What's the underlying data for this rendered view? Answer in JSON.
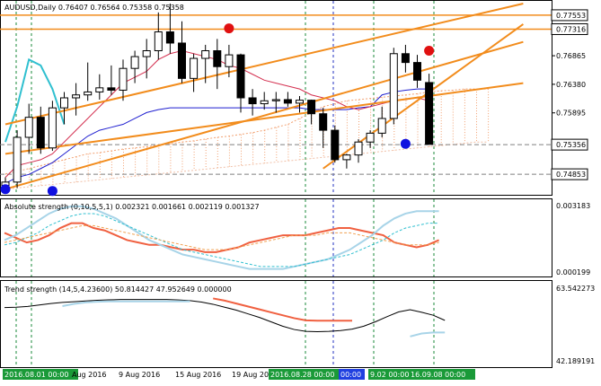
{
  "window": {
    "symbol_line": "AUDUSD,Daily  0.76407 0.76564 0.75358 0.75358"
  },
  "colors": {
    "background": "#ffffff",
    "candle_up": "#ffffff",
    "candle_down": "#000000",
    "trend_line": "#f28c1c",
    "kumo": "#f2a070",
    "tenkan": "#d43050",
    "kijun": "#1f1fd0",
    "chikou": "#30c0d0",
    "signal_up": "#1010e0",
    "signal_down": "#e01010",
    "strength_red": "#f06040",
    "strength_blue": "#a8d4e8",
    "price_tag": "#ffffff",
    "time_tag": "#1a9a38",
    "time_tag_blue": "#2040e0"
  },
  "main_chart": {
    "price_labels": [
      "0.77553",
      "0.77316",
      "0.76865",
      "0.76380",
      "0.75895",
      "0.75356",
      "0.74853"
    ],
    "price_levels": [
      0.77553,
      0.77316,
      0.76865,
      0.7638,
      0.75895,
      0.75356,
      0.74853
    ],
    "highlighted_labels": [
      "0.77553",
      "0.77316",
      "0.75356",
      "0.74853"
    ],
    "ylim": [
      0.7455,
      0.7775
    ]
  },
  "chart_data": [
    {
      "type": "candlestick",
      "title": "AUDUSD,Daily",
      "ylim": [
        0.7455,
        0.7775
      ],
      "candles": [
        {
          "o": 0.7466,
          "h": 0.748,
          "l": 0.7455,
          "c": 0.7472
        },
        {
          "o": 0.7472,
          "h": 0.756,
          "l": 0.7462,
          "c": 0.7548
        },
        {
          "o": 0.7548,
          "h": 0.7605,
          "l": 0.752,
          "c": 0.7582
        },
        {
          "o": 0.7582,
          "h": 0.76,
          "l": 0.752,
          "c": 0.753
        },
        {
          "o": 0.753,
          "h": 0.761,
          "l": 0.7525,
          "c": 0.7598
        },
        {
          "o": 0.7598,
          "h": 0.7625,
          "l": 0.757,
          "c": 0.7615
        },
        {
          "o": 0.7615,
          "h": 0.764,
          "l": 0.7585,
          "c": 0.762
        },
        {
          "o": 0.762,
          "h": 0.7675,
          "l": 0.761,
          "c": 0.7625
        },
        {
          "o": 0.7625,
          "h": 0.7655,
          "l": 0.7612,
          "c": 0.7632
        },
        {
          "o": 0.7632,
          "h": 0.767,
          "l": 0.762,
          "c": 0.7628
        },
        {
          "o": 0.7628,
          "h": 0.768,
          "l": 0.761,
          "c": 0.7665
        },
        {
          "o": 0.7665,
          "h": 0.7695,
          "l": 0.764,
          "c": 0.7685
        },
        {
          "o": 0.7685,
          "h": 0.7715,
          "l": 0.7648,
          "c": 0.7695
        },
        {
          "o": 0.7695,
          "h": 0.776,
          "l": 0.768,
          "c": 0.7727
        },
        {
          "o": 0.7727,
          "h": 0.7775,
          "l": 0.769,
          "c": 0.7708
        },
        {
          "o": 0.7708,
          "h": 0.7745,
          "l": 0.764,
          "c": 0.7648
        },
        {
          "o": 0.7648,
          "h": 0.769,
          "l": 0.7625,
          "c": 0.7682
        },
        {
          "o": 0.7682,
          "h": 0.7705,
          "l": 0.764,
          "c": 0.7695
        },
        {
          "o": 0.7695,
          "h": 0.7715,
          "l": 0.763,
          "c": 0.7668
        },
        {
          "o": 0.7668,
          "h": 0.7705,
          "l": 0.765,
          "c": 0.7688
        },
        {
          "o": 0.7688,
          "h": 0.769,
          "l": 0.759,
          "c": 0.7615
        },
        {
          "o": 0.7615,
          "h": 0.763,
          "l": 0.7585,
          "c": 0.7605
        },
        {
          "o": 0.7605,
          "h": 0.7625,
          "l": 0.7595,
          "c": 0.761
        },
        {
          "o": 0.761,
          "h": 0.7625,
          "l": 0.759,
          "c": 0.7612
        },
        {
          "o": 0.7612,
          "h": 0.7625,
          "l": 0.76,
          "c": 0.7606
        },
        {
          "o": 0.7606,
          "h": 0.7618,
          "l": 0.759,
          "c": 0.7611
        },
        {
          "o": 0.7611,
          "h": 0.7612,
          "l": 0.757,
          "c": 0.7588
        },
        {
          "o": 0.7588,
          "h": 0.7598,
          "l": 0.753,
          "c": 0.756
        },
        {
          "o": 0.756,
          "h": 0.7568,
          "l": 0.7505,
          "c": 0.751
        },
        {
          "o": 0.751,
          "h": 0.752,
          "l": 0.7495,
          "c": 0.7518
        },
        {
          "o": 0.7518,
          "h": 0.7545,
          "l": 0.7505,
          "c": 0.754
        },
        {
          "o": 0.754,
          "h": 0.756,
          "l": 0.753,
          "c": 0.7555
        },
        {
          "o": 0.7555,
          "h": 0.76,
          "l": 0.7548,
          "c": 0.758
        },
        {
          "o": 0.758,
          "h": 0.77,
          "l": 0.757,
          "c": 0.769
        },
        {
          "o": 0.769,
          "h": 0.7705,
          "l": 0.7658,
          "c": 0.7675
        },
        {
          "o": 0.7675,
          "h": 0.7688,
          "l": 0.7632,
          "c": 0.7645
        },
        {
          "o": 0.7641,
          "h": 0.7656,
          "l": 0.7536,
          "c": 0.7536
        }
      ],
      "tenkan": [
        0.748,
        0.75,
        0.7505,
        0.751,
        0.752,
        0.754,
        0.756,
        0.758,
        0.76,
        0.762,
        0.764,
        0.765,
        0.766,
        0.768,
        0.769,
        0.7695,
        0.769,
        0.7685,
        0.768,
        0.767,
        0.7665,
        0.7655,
        0.7645,
        0.764,
        0.7635,
        0.763,
        0.762,
        0.7615,
        0.761,
        0.76,
        0.7595,
        0.76,
        0.7605,
        0.761,
        0.7612,
        0.7615,
        0.761
      ],
      "kijun": [
        0.747,
        0.748,
        0.7485,
        0.7495,
        0.7505,
        0.752,
        0.7535,
        0.755,
        0.756,
        0.7565,
        0.757,
        0.758,
        0.759,
        0.7595,
        0.7598,
        0.7598,
        0.7598,
        0.7598,
        0.7598,
        0.7598,
        0.7598,
        0.7598,
        0.7598,
        0.7598,
        0.7598,
        0.7598,
        0.7595,
        0.7595,
        0.7595,
        0.7595,
        0.7598,
        0.76,
        0.762,
        0.7625,
        0.7628,
        0.763,
        0.763
      ],
      "chikou": [
        0.754,
        0.76,
        0.768,
        0.767,
        0.763,
        0.757,
        null,
        null,
        null,
        null,
        null,
        null,
        null,
        null,
        null,
        null,
        null,
        null,
        null,
        null,
        null,
        null,
        null,
        null,
        null,
        null,
        null,
        null,
        null,
        null,
        null,
        null,
        null,
        null,
        null,
        null,
        null
      ],
      "kumo_top": [
        0.7486,
        0.749,
        0.7495,
        0.75,
        0.7505,
        0.751,
        0.7515,
        0.752,
        0.7522,
        0.7525,
        0.7528,
        0.753,
        0.7532,
        0.7535,
        0.7537,
        0.754,
        0.7542,
        0.7545,
        0.7548,
        0.755,
        0.7553,
        0.7556,
        0.756,
        0.7565,
        0.757,
        0.758,
        0.759,
        0.76,
        0.7605,
        0.761,
        0.7612,
        0.7614,
        0.7616,
        0.7618,
        0.762,
        0.7622,
        0.7625,
        0.7627,
        0.7628,
        0.763,
        0.763,
        0.763
      ],
      "kumo_bottom": [
        0.746,
        0.7462,
        0.7464,
        0.7466,
        0.7468,
        0.747,
        0.7472,
        0.7474,
        0.7476,
        0.7478,
        0.748,
        0.7482,
        0.7484,
        0.7486,
        0.7488,
        0.749,
        0.7492,
        0.7494,
        0.7496,
        0.7498,
        0.75,
        0.7502,
        0.7504,
        0.7506,
        0.7508,
        0.751,
        0.7512,
        0.7514,
        0.7516,
        0.7518,
        0.752,
        0.7522,
        0.7524,
        0.7526,
        0.7528,
        0.753,
        0.7532,
        0.7534,
        0.7536,
        0.7538,
        0.754,
        0.754
      ],
      "trendlines": [
        {
          "from": [
            0,
            0.746
          ],
          "to": [
            44,
            0.771
          ]
        },
        {
          "from": [
            0,
            0.757
          ],
          "to": [
            44,
            0.7775
          ]
        },
        {
          "from": [
            0,
            0.752
          ],
          "to": [
            44,
            0.764
          ]
        },
        {
          "from": [
            27,
            0.7495
          ],
          "to": [
            44,
            0.774
          ]
        }
      ],
      "horizontal_levels": [
        0.77553,
        0.77316,
        0.75356,
        0.74853
      ],
      "signals": [
        {
          "kind": "down",
          "index": 19,
          "price": 0.7733
        },
        {
          "kind": "down",
          "index": 36,
          "price": 0.7695
        },
        {
          "kind": "up",
          "index": 34,
          "price": 0.7537
        },
        {
          "kind": "up",
          "index": 0,
          "price": 0.746
        },
        {
          "kind": "up",
          "index": 4,
          "price": 0.7457
        }
      ]
    },
    {
      "type": "line",
      "title": "Absolute strength (0,10,5,5,1) 0.002321 0.001661 0.002119 0.001327",
      "ylim": [
        0.000199,
        0.003183
      ],
      "tick_labels": [
        "0.003183",
        "0.000199"
      ],
      "series": [
        {
          "values": [
            0.0019,
            0.0017,
            0.0015,
            0.0016,
            0.0018,
            0.0021,
            0.0023,
            0.0023,
            0.0021,
            0.002,
            0.0018,
            0.0016,
            0.0015,
            0.0014,
            0.0014,
            0.0013,
            0.0012,
            0.0012,
            0.0011,
            0.0011,
            0.0012,
            0.0013,
            0.0015,
            0.0016,
            0.0017,
            0.0018,
            0.0018,
            0.0018,
            0.0019,
            0.002,
            0.0021,
            0.0021,
            0.002,
            0.0019,
            0.0018,
            0.0015,
            0.0014,
            0.0013,
            0.0014,
            0.0016
          ]
        },
        {
          "values": [
            0.0016,
            0.0018,
            0.0021,
            0.0024,
            0.0027,
            0.0029,
            0.003,
            0.003,
            0.0029,
            0.0027,
            0.0025,
            0.0022,
            0.0019,
            0.0016,
            0.0014,
            0.0012,
            0.001,
            0.0009,
            0.0008,
            0.0007,
            0.0006,
            0.0005,
            0.0004,
            0.0004,
            0.0004,
            0.0004,
            0.0005,
            0.0006,
            0.0007,
            0.0008,
            0.001,
            0.0012,
            0.0015,
            0.0018,
            0.0022,
            0.0025,
            0.0027,
            0.0028,
            0.0028,
            0.0028
          ]
        },
        {
          "values": [
            0.0014,
            0.0015,
            0.0017,
            0.0019,
            0.0022,
            0.0024,
            0.0026,
            0.0027,
            0.0027,
            0.0026,
            0.0024,
            0.0022,
            0.002,
            0.0018,
            0.0016,
            0.0014,
            0.0012,
            0.0011,
            0.001,
            0.0009,
            0.0008,
            0.0007,
            0.0006,
            0.0005,
            0.0005,
            0.0005,
            0.0005,
            0.0006,
            0.0007,
            0.0008,
            0.0009,
            0.001,
            0.0012,
            0.0014,
            0.0016,
            0.0019,
            0.0021,
            0.0022,
            0.0023,
            0.0023
          ]
        },
        {
          "values": [
            0.0015,
            0.0016,
            0.0017,
            0.0018,
            0.0019,
            0.002,
            0.0021,
            0.0022,
            0.0022,
            0.0021,
            0.002,
            0.0019,
            0.0018,
            0.0017,
            0.0016,
            0.0015,
            0.0014,
            0.0013,
            0.0012,
            0.0012,
            0.0012,
            0.0013,
            0.0014,
            0.0015,
            0.0016,
            0.0017,
            0.0018,
            0.0018,
            0.0018,
            0.0019,
            0.0019,
            0.0019,
            0.0018,
            0.0017,
            0.0016,
            0.0015,
            0.0014,
            0.0014,
            0.0014,
            0.0015
          ]
        }
      ]
    },
    {
      "type": "line",
      "title": "Trend strength (14,5,4.23600) 50.814427 47.952649 0.000000",
      "ylim": [
        42.189191,
        63.542273
      ],
      "tick_labels": [
        "63.542273",
        "42.189191"
      ],
      "series": [
        {
          "values": [
            57.5,
            57.6,
            57.8,
            58.2,
            58.6,
            58.9,
            59.1,
            59.3,
            59.5,
            59.6,
            59.7,
            59.7,
            59.7,
            59.7,
            59.7,
            59.6,
            59.4,
            59.0,
            58.4,
            57.6,
            56.8,
            55.8,
            54.8,
            53.6,
            52.4,
            51.5,
            51.0,
            50.9,
            51.0,
            51.2,
            51.6,
            52.4,
            53.6,
            55.0,
            56.3,
            56.9,
            56.2,
            55.4,
            54.0
          ]
        },
        {
          "values": [
            null,
            null,
            null,
            null,
            null,
            57.9,
            58.5,
            58.9,
            59.1,
            59.2,
            59.2,
            59.2,
            59.2,
            59.2,
            59.2,
            59.2,
            59.2
          ]
        },
        {
          "values": [
            null,
            null,
            null,
            null,
            null,
            null,
            null,
            null,
            null,
            null,
            null,
            null,
            null,
            null,
            null,
            null,
            null,
            null,
            60.0,
            59.4,
            58.6,
            57.8,
            57.0,
            56.2,
            55.4,
            54.6,
            54.0,
            53.9,
            53.9,
            53.9,
            53.9
          ]
        },
        {
          "values": [
            null,
            null,
            null,
            null,
            null,
            null,
            null,
            null,
            null,
            null,
            null,
            null,
            null,
            null,
            null,
            null,
            null,
            null,
            null,
            null,
            null,
            null,
            null,
            null,
            null,
            null,
            null,
            null,
            null,
            null,
            null,
            null,
            null,
            null,
            null,
            49.6,
            50.4,
            50.7,
            50.7
          ]
        }
      ]
    }
  ],
  "sub1": {
    "title": "Absolute strength (0,10,5,5,1) 0.002321 0.001661 0.002119 0.001327",
    "label_top": "0.003183",
    "label_bottom": "0.000199"
  },
  "sub2": {
    "title": "Trend strength (14,5,4.23600) 50.814427 47.952649 0.000000",
    "label_top": "63.542273",
    "label_bottom": "42.189191"
  },
  "time_axis": {
    "labels": [
      {
        "text": "2016.08.01 00:00",
        "boxed": true
      },
      {
        "text": "Aug 2016",
        "boxed": false
      },
      {
        "text": "9 Aug 2016",
        "boxed": false
      },
      {
        "text": "15 Aug 2016",
        "boxed": false
      },
      {
        "text": "19 Aug 20",
        "boxed": false
      },
      {
        "text": "2016.08.28 00:00",
        "boxed": true
      },
      {
        "text": "00:00",
        "boxed": "blue"
      },
      {
        "text": "9.02 00:00",
        "boxed": true
      },
      {
        "text": "16.09.08 00:00",
        "boxed": true
      }
    ]
  }
}
